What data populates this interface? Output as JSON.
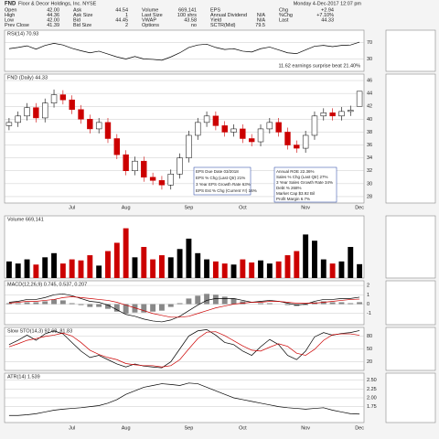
{
  "quote": {
    "symbol": "FND",
    "name": "Floor & Decor Holdings, Inc. NYSE",
    "stamp": "Monday 4-Dec-2017 12:07 pm",
    "cells": [
      [
        "Open",
        "42.00"
      ],
      [
        "High",
        "44.36"
      ],
      [
        "Low",
        "42.00"
      ],
      [
        "Prev Close",
        "41.39"
      ],
      [
        "Ask",
        "44.54"
      ],
      [
        "Ask Size",
        "1"
      ],
      [
        "Bid",
        "44.45"
      ],
      [
        "Bid Size",
        "2"
      ],
      [
        "Volume",
        "669,141"
      ],
      [
        "Last Size",
        "100 shrs"
      ],
      [
        "VWAP",
        "43.58"
      ],
      [
        "Options",
        "no"
      ],
      [
        "EPS",
        ""
      ],
      [
        "Annual Dividend",
        "N/A"
      ],
      [
        "Yield",
        "N/A"
      ],
      [
        "SCTR(Mid)",
        "79.5"
      ],
      [
        "Chg",
        "+2.94"
      ],
      [
        "%Chg",
        "+7.10%"
      ],
      [
        "Last",
        "44.33"
      ]
    ]
  },
  "chart_data": [
    {
      "type": "line",
      "label": "RSI(14) 70.93",
      "ylim": [
        0,
        100
      ],
      "yticks": [
        30,
        70
      ],
      "annotation": "11.62 earnings surprise beat 21.40%",
      "series": [
        {
          "name": "RSI",
          "color": "#000000",
          "values": [
            55,
            58,
            62,
            54,
            63,
            68,
            64,
            56,
            50,
            45,
            49,
            42,
            35,
            30,
            36,
            30,
            29,
            27,
            35,
            45,
            58,
            64,
            66,
            58,
            53,
            55,
            49,
            47,
            55,
            59,
            52,
            45,
            43,
            52,
            61,
            63,
            60,
            63,
            64,
            70.93
          ]
        }
      ]
    },
    {
      "type": "candlestick",
      "label": "FND (Daily) 44.33",
      "ylim": [
        27,
        47
      ],
      "yticks": [
        28,
        30,
        32,
        34,
        36,
        38,
        40,
        42,
        44,
        46
      ],
      "up_color": "#000000",
      "down_color": "#cc0000",
      "annotations": [
        "EPS Due Date 03/2018",
        "EPS % Chg (Last Qtr) 21%",
        "3 Year EPS Growth Rate 63%",
        "EPS Est % Chg (Current Yr) 16%",
        "Annual ROE 22.36%",
        "Sales % Chg (Last Qtr) 27%",
        "3 Year Sales Growth Rate 34%",
        "Debt % 268%",
        "Market Cap $3.92 Bil",
        "Profit Margin 6.7%"
      ],
      "categories": [
        null,
        null,
        null,
        null,
        null,
        null,
        null,
        "Jul",
        null,
        null,
        null,
        null,
        null,
        "Aug",
        null,
        null,
        null,
        null,
        null,
        null,
        "Sep",
        null,
        null,
        null,
        null,
        null,
        "Oct",
        null,
        null,
        null,
        null,
        null,
        null,
        "Nov",
        null,
        null,
        null,
        null,
        null,
        "Dec"
      ],
      "open": [
        39,
        39.5,
        40.5,
        41.8,
        40.2,
        42.5,
        43.8,
        43,
        41.5,
        40,
        38.5,
        39.5,
        37,
        34.5,
        32,
        33.5,
        31,
        30.5,
        29.8,
        31.5,
        34,
        37.5,
        39.5,
        40.5,
        39,
        38,
        38.5,
        37,
        36.5,
        38.5,
        39.5,
        38,
        36,
        35.5,
        37.5,
        40.5,
        41,
        40.5,
        41.2,
        42
      ],
      "high": [
        40.2,
        41.2,
        42.5,
        42.5,
        43.2,
        44.6,
        44.5,
        43.7,
        42.2,
        40.7,
        40.2,
        40.2,
        37.7,
        35.2,
        34.2,
        34.2,
        31.7,
        31.2,
        32.2,
        34.7,
        38.2,
        40.2,
        41.2,
        41.2,
        39.7,
        39.2,
        39.2,
        37.7,
        39.2,
        40.2,
        40.2,
        38.7,
        36.7,
        38.2,
        41.2,
        41.7,
        41.7,
        41.9,
        42.1,
        44.36
      ],
      "low": [
        38.3,
        38.8,
        39.8,
        39.5,
        39.5,
        41.8,
        42.3,
        40.8,
        39.3,
        37.8,
        37.8,
        36.3,
        33.8,
        31.3,
        31.3,
        30.3,
        29.8,
        29.1,
        29.1,
        30.8,
        33.3,
        36.8,
        38.8,
        38.3,
        37.3,
        37.3,
        36.3,
        35.8,
        35.8,
        37.8,
        37.3,
        35.3,
        34.8,
        34.8,
        36.8,
        39.8,
        39.8,
        39.8,
        40.5,
        42
      ],
      "close": [
        39.5,
        40.5,
        41.8,
        40.2,
        42.5,
        43.8,
        43,
        41.5,
        40,
        38.5,
        39.5,
        37,
        34.5,
        32,
        33.5,
        31,
        30.5,
        29.8,
        31.5,
        34,
        37.5,
        39.5,
        40.5,
        39,
        38,
        38.5,
        37,
        36.5,
        38.5,
        39.5,
        38,
        36,
        35.5,
        37.5,
        40.5,
        41,
        40.5,
        41.2,
        41.4,
        44.33
      ]
    },
    {
      "type": "bar",
      "label": "Volume 669,141",
      "ylim": [
        0,
        3000000
      ],
      "color": "#cc0000",
      "values": [
        800000,
        700000,
        900000,
        650000,
        1000000,
        1200000,
        700000,
        900000,
        850000,
        1100000,
        600000,
        1300000,
        1700000,
        2400000,
        1000000,
        1500000,
        900000,
        1100000,
        1000000,
        1400000,
        1900000,
        1200000,
        900000,
        800000,
        700000,
        650000,
        900000,
        750000,
        850000,
        700000,
        800000,
        1100000,
        1300000,
        2100000,
        1800000,
        900000,
        700000,
        800000,
        1500000,
        669141
      ]
    },
    {
      "type": "line",
      "label": "MACD(12,26,9) 0.745, 0.537, 0.207",
      "ylim": [
        -2.2,
        2.5
      ],
      "yticks": [
        -1,
        0,
        1,
        2
      ],
      "series": [
        {
          "name": "MACD",
          "color": "#000000",
          "values": [
            0.2,
            0.3,
            0.5,
            0.5,
            0.7,
            1,
            1.1,
            0.9,
            0.6,
            0.3,
            0.2,
            -0.1,
            -0.6,
            -1.1,
            -1.3,
            -1.6,
            -1.8,
            -1.9,
            -1.7,
            -1.3,
            -0.7,
            -0.1,
            0.4,
            0.6,
            0.6,
            0.6,
            0.4,
            0.2,
            0.3,
            0.4,
            0.3,
            0.1,
            -0.1,
            0,
            0.3,
            0.5,
            0.5,
            0.6,
            0.6,
            0.745
          ]
        },
        {
          "name": "Signal",
          "color": "#cc0000",
          "values": [
            0.1,
            0.2,
            0.3,
            0.3,
            0.4,
            0.5,
            0.7,
            0.8,
            0.7,
            0.6,
            0.5,
            0.4,
            0.2,
            -0.1,
            -0.4,
            -0.7,
            -1,
            -1.2,
            -1.4,
            -1.4,
            -1.3,
            -1,
            -0.7,
            -0.4,
            -0.2,
            0,
            0.1,
            0.2,
            0.2,
            0.3,
            0.3,
            0.2,
            0.1,
            0.1,
            0.1,
            0.2,
            0.3,
            0.4,
            0.5,
            0.537
          ]
        }
      ],
      "histogram": {
        "color": "#888888",
        "values": [
          0.1,
          0.1,
          0.2,
          0.2,
          0.3,
          0.5,
          0.4,
          0.1,
          -0.1,
          -0.3,
          -0.3,
          -0.5,
          -0.8,
          -1,
          -0.9,
          -0.9,
          -0.8,
          -0.7,
          -0.3,
          0.1,
          0.6,
          0.9,
          1.1,
          1,
          0.8,
          0.6,
          0.3,
          0,
          0.1,
          0.1,
          0,
          -0.1,
          -0.2,
          -0.1,
          0.2,
          0.3,
          0.2,
          0.2,
          0.1,
          0.207
        ]
      }
    },
    {
      "type": "line",
      "label": "Slow STO(14,3) 92.68, 81.83",
      "ylim": [
        0,
        100
      ],
      "yticks": [
        20,
        50,
        80
      ],
      "series": [
        {
          "name": "%K",
          "color": "#000000",
          "values": [
            60,
            70,
            82,
            70,
            85,
            92,
            85,
            65,
            45,
            30,
            35,
            25,
            15,
            8,
            15,
            10,
            8,
            6,
            20,
            50,
            80,
            92,
            95,
            82,
            65,
            60,
            45,
            35,
            55,
            72,
            60,
            35,
            25,
            45,
            78,
            88,
            82,
            86,
            88,
            92.68
          ]
        },
        {
          "name": "%D",
          "color": "#cc0000",
          "values": [
            55,
            62,
            70,
            74,
            79,
            82,
            87,
            80,
            65,
            47,
            37,
            30,
            25,
            16,
            13,
            11,
            11,
            8,
            11,
            25,
            50,
            74,
            89,
            90,
            81,
            69,
            57,
            47,
            45,
            54,
            62,
            56,
            40,
            35,
            49,
            70,
            83,
            85,
            85,
            81.83
          ]
        }
      ]
    },
    {
      "type": "line",
      "label": "ATR(14) 1.539",
      "ylim": [
        1.3,
        2.7
      ],
      "yticks": [
        1.75,
        {
          "value": 2,
          "label": "2.00"
        },
        2.25,
        {
          "value": 2.5,
          "label": "2.50"
        }
      ],
      "series": [
        {
          "name": "ATR",
          "color": "#000000",
          "values": [
            1.5,
            1.5,
            1.52,
            1.55,
            1.6,
            1.65,
            1.68,
            1.7,
            1.72,
            1.75,
            1.78,
            1.85,
            1.95,
            2.1,
            2.2,
            2.3,
            2.35,
            2.4,
            2.38,
            2.35,
            2.42,
            2.4,
            2.3,
            2.2,
            2.1,
            2,
            1.95,
            1.9,
            1.85,
            1.8,
            1.75,
            1.72,
            1.7,
            1.68,
            1.7,
            1.72,
            1.65,
            1.6,
            1.55,
            1.539
          ]
        }
      ]
    }
  ]
}
